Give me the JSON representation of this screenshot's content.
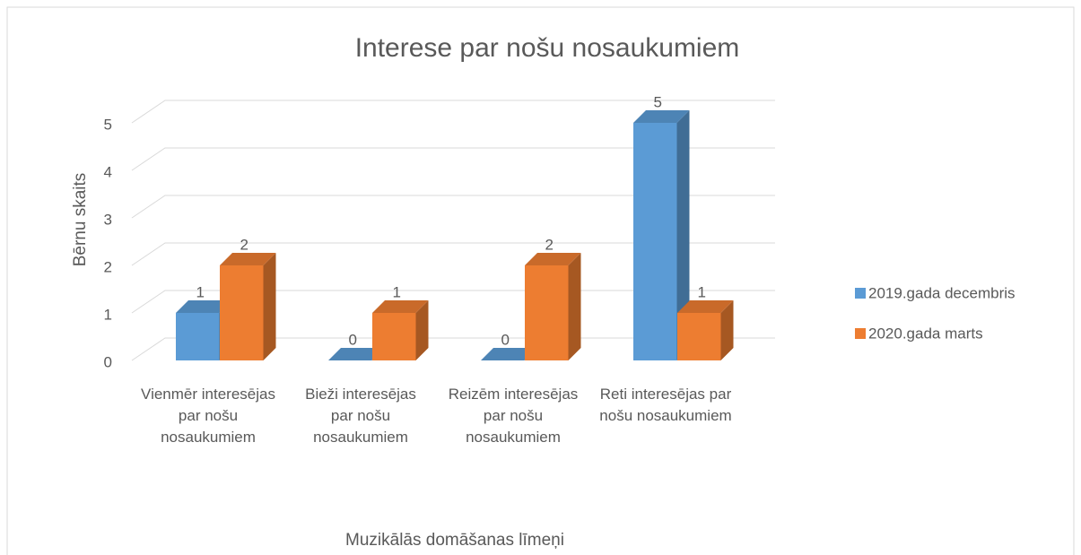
{
  "chart_data": {
    "type": "bar3d",
    "title": "Interese par nošu nosaukumiem",
    "y_label": "Bērnu skaits",
    "x_label": "Muzikālās domāšanas līmeņi",
    "categories": [
      "Vienmēr interesējas par nošu nosaukumiem",
      "Bieži interesējas par nošu nosaukumiem",
      "Reizēm interesējas par nošu nosaukumiem",
      "Reti interesējas par nošu nosaukumiem"
    ],
    "series": [
      {
        "name": "2019.gada decembris",
        "color": "#5b9bd5",
        "values": [
          1,
          0,
          0,
          5
        ]
      },
      {
        "name": "2020.gada marts",
        "color": "#ed7d31",
        "values": [
          2,
          1,
          2,
          1
        ]
      }
    ],
    "ylim": [
      0,
      5
    ],
    "yticks": [
      0,
      1,
      2,
      3,
      4,
      5
    ],
    "grid": true,
    "legend": "right"
  }
}
